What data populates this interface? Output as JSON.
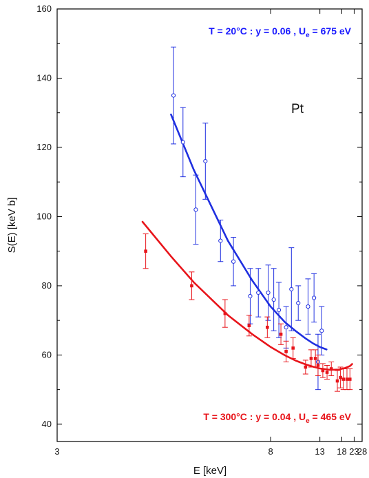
{
  "chart_data": {
    "type": "scatter",
    "xlabel": "E [keV]",
    "ylabel": "S(E) [keV b]",
    "x_scale": "reciprocal",
    "xlim": [
      3,
      28
    ],
    "ylim": [
      35,
      160
    ],
    "x_ticks": [
      3,
      8,
      13,
      18,
      23,
      28
    ],
    "y_ticks": [
      40,
      60,
      80,
      100,
      120,
      140,
      160
    ],
    "grid": false,
    "element_label": "Pt",
    "annotations": [
      {
        "text": "T = 20°C : y = 0.06 , U",
        "sub": "e",
        "tail": " = 675 eV",
        "color": "#1a1aff",
        "position": "top-right"
      },
      {
        "text": "T = 300°C : y = 0.04 , U",
        "sub": "e",
        "tail": " = 465 eV",
        "color": "#e8151b",
        "position": "bottom-right"
      }
    ],
    "series": [
      {
        "color": "#1f2fe0",
        "marker": "open-circle",
        "points": [
          {
            "x": 4.55,
            "y": 135,
            "err": 14
          },
          {
            "x": 4.75,
            "y": 121.5,
            "err": 10
          },
          {
            "x": 5.05,
            "y": 102,
            "err": 10
          },
          {
            "x": 5.3,
            "y": 116,
            "err": 11
          },
          {
            "x": 5.75,
            "y": 93,
            "err": 6
          },
          {
            "x": 6.2,
            "y": 87,
            "err": 7
          },
          {
            "x": 6.9,
            "y": 77,
            "err": 8
          },
          {
            "x": 7.3,
            "y": 78,
            "err": 7
          },
          {
            "x": 7.85,
            "y": 78,
            "err": 8
          },
          {
            "x": 8.2,
            "y": 76,
            "err": 9
          },
          {
            "x": 8.55,
            "y": 73,
            "err": 8
          },
          {
            "x": 9.1,
            "y": 68,
            "err": 6
          },
          {
            "x": 9.55,
            "y": 79,
            "err": 12
          },
          {
            "x": 10.2,
            "y": 75,
            "err": 5
          },
          {
            "x": 11.3,
            "y": 74,
            "err": 8
          },
          {
            "x": 12.1,
            "y": 76.5,
            "err": 7
          },
          {
            "x": 12.7,
            "y": 58,
            "err": 8
          },
          {
            "x": 13.3,
            "y": 67,
            "err": 7
          }
        ],
        "fit": {
          "x": [
            4.5,
            5,
            6,
            7,
            8,
            9,
            10,
            11,
            12,
            13,
            14.2
          ],
          "y": [
            129.5,
            113.5,
            93,
            81.5,
            74,
            69.5,
            66.8,
            64.8,
            63.3,
            62.3,
            61.6
          ]
        }
      },
      {
        "color": "#e8151b",
        "marker": "filled-square",
        "points": [
          {
            "x": 4.05,
            "y": 90,
            "err": 5
          },
          {
            "x": 4.95,
            "y": 80,
            "err": 4
          },
          {
            "x": 5.9,
            "y": 72,
            "err": 4
          },
          {
            "x": 6.85,
            "y": 68.5,
            "err": 3
          },
          {
            "x": 7.8,
            "y": 68,
            "err": 3
          },
          {
            "x": 8.7,
            "y": 66,
            "err": 3
          },
          {
            "x": 9.1,
            "y": 61,
            "err": 3
          },
          {
            "x": 9.7,
            "y": 62,
            "err": 3
          },
          {
            "x": 11.0,
            "y": 56.5,
            "err": 2
          },
          {
            "x": 11.7,
            "y": 59,
            "err": 2.5
          },
          {
            "x": 12.3,
            "y": 59,
            "err": 2.5
          },
          {
            "x": 12.7,
            "y": 57,
            "err": 3
          },
          {
            "x": 13.5,
            "y": 55.5,
            "err": 2
          },
          {
            "x": 14.3,
            "y": 55,
            "err": 2
          },
          {
            "x": 15.2,
            "y": 56,
            "err": 2
          },
          {
            "x": 16.7,
            "y": 52.5,
            "err": 3
          },
          {
            "x": 17.6,
            "y": 53.5,
            "err": 3
          },
          {
            "x": 18.5,
            "y": 53,
            "err": 3
          },
          {
            "x": 19.8,
            "y": 53,
            "err": 3
          },
          {
            "x": 21.0,
            "y": 53,
            "err": 3
          }
        ],
        "fit": {
          "x": [
            4.0,
            4.5,
            5,
            6,
            7,
            8,
            9,
            10,
            11,
            12,
            13,
            15,
            17,
            19,
            21,
            22
          ],
          "y": [
            98.5,
            88.5,
            81,
            71.5,
            66,
            62.3,
            59.9,
            58.3,
            57.3,
            56.6,
            56.1,
            55.7,
            55.8,
            56.2,
            56.8,
            57.4
          ]
        }
      }
    ]
  }
}
